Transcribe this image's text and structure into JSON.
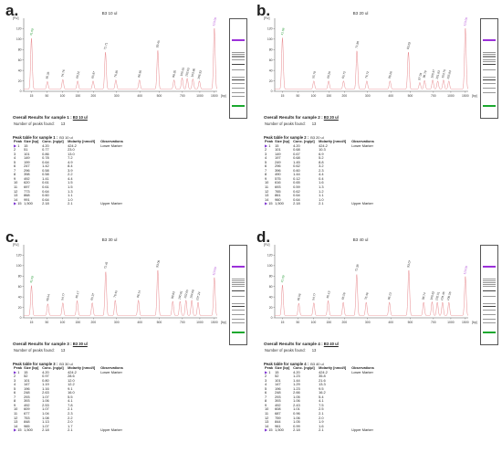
{
  "colors": {
    "trace": "#e8898e",
    "axis": "#555555",
    "lower_marker": "#2a9d3a",
    "upper_marker": "#b04bd6",
    "gel_purple": "#9b30d9",
    "gel_green": "#1aa82e"
  },
  "panels": [
    {
      "label": "a.",
      "title": "B3 10 ul",
      "summary_title": "Overall Results for sample 1 :",
      "sample_name": "B3 10 ul",
      "peaks_found_label": "Number of peaks found:",
      "peaks_found": "13",
      "peak_table_title": "Peak table for sample 1 :",
      "headers": [
        "Peak",
        "Size [bp]",
        "Conc. [ng/µl]",
        "Molarity [nmol/l]",
        "Observations"
      ],
      "rows": [
        [
          "1",
          "15",
          "4.20",
          "424.2",
          "Lower Marker"
        ],
        [
          "2",
          "51",
          "0.77",
          "23.0",
          ""
        ],
        [
          "3",
          "101",
          "0.86",
          "13.0",
          ""
        ],
        [
          "4",
          "149",
          "0.78",
          "7.2",
          ""
        ],
        [
          "5",
          "199",
          "0.64",
          "4.9",
          ""
        ],
        [
          "6",
          "247",
          "1.42",
          "8.4",
          ""
        ],
        [
          "7",
          "296",
          "0.58",
          "3.9",
          ""
        ],
        [
          "8",
          "398",
          "0.58",
          "2.2",
          ""
        ],
        [
          "9",
          "492",
          "1.41",
          "4.4",
          ""
        ],
        [
          "10",
          "620",
          "0.61",
          "1.5",
          ""
        ],
        [
          "11",
          "697",
          "0.61",
          "1.5",
          ""
        ],
        [
          "12",
          "773",
          "0.64",
          "1.3",
          ""
        ],
        [
          "13",
          "868",
          "0.60",
          "1.1",
          ""
        ],
        [
          "14",
          "991",
          "0.64",
          "1.0",
          ""
        ],
        [
          "15",
          "1,500",
          "2.18",
          "2.1",
          "Upper Marker"
        ]
      ]
    },
    {
      "label": "b.",
      "title": "B3 20 ul",
      "summary_title": "Overall Results for sample 2 :",
      "sample_name": "B3 20 ul",
      "peaks_found_label": "Number of peaks found:",
      "peaks_found": "13",
      "peak_table_title": "Peak table for sample 2 :",
      "headers": [
        "Peak",
        "Size [bp]",
        "Conc. [ng/µl]",
        "Molarity [nmol/l]",
        "Observations"
      ],
      "rows": [
        [
          "1",
          "15",
          "4.20",
          "424.2",
          "Lower Marker"
        ],
        [
          "2",
          "101",
          "0.68",
          "10.3",
          ""
        ],
        [
          "3",
          "149",
          "0.67",
          "6.9",
          ""
        ],
        [
          "4",
          "197",
          "0.68",
          "5.2",
          ""
        ],
        [
          "5",
          "249",
          "1.45",
          "8.8",
          ""
        ],
        [
          "6",
          "296",
          "0.62",
          "3.2",
          ""
        ],
        [
          "7",
          "396",
          "0.60",
          "2.3",
          ""
        ],
        [
          "8",
          "490",
          "1.44",
          "4.4",
          ""
        ],
        [
          "9",
          "575",
          "0.12",
          "0.4",
          ""
        ],
        [
          "10",
          "616",
          "0.65",
          "1.6",
          ""
        ],
        [
          "11",
          "693",
          "0.59",
          "1.3",
          ""
        ],
        [
          "12",
          "765",
          "0.62",
          "1.2",
          ""
        ],
        [
          "13",
          "861",
          "0.64",
          "1.1",
          ""
        ],
        [
          "14",
          "960",
          "0.64",
          "1.0",
          ""
        ],
        [
          "15",
          "1,500",
          "2.18",
          "2.1",
          "Upper Marker"
        ]
      ]
    },
    {
      "label": "c.",
      "title": "B3 30 ul",
      "summary_title": "Overall Results for sample 3 :",
      "sample_name": "B3 30 ul",
      "peaks_found_label": "Number of peaks found:",
      "peaks_found": "13",
      "peak_table_title": "Peak table for sample 3 :",
      "headers": [
        "Peak",
        "Size [bp]",
        "Conc. [ng/µl]",
        "Molarity [nmol/l]",
        "Observations"
      ],
      "rows": [
        [
          "1",
          "15",
          "4.20",
          "424.2",
          "Lower Marker"
        ],
        [
          "2",
          "52",
          "0.97",
          "28.6",
          ""
        ],
        [
          "3",
          "101",
          "0.80",
          "12.0",
          ""
        ],
        [
          "4",
          "147",
          "1.19",
          "12.2",
          ""
        ],
        [
          "5",
          "196",
          "1.16",
          "9.1",
          ""
        ],
        [
          "6",
          "248",
          "2.63",
          "16.0",
          ""
        ],
        [
          "7",
          "293",
          "1.07",
          "5.5",
          ""
        ],
        [
          "8",
          "393",
          "1.06",
          "4.1",
          ""
        ],
        [
          "9",
          "492",
          "2.53",
          "7.8",
          ""
        ],
        [
          "10",
          "609",
          "1.07",
          "2.1",
          ""
        ],
        [
          "11",
          "677",
          "1.04",
          "2.3",
          ""
        ],
        [
          "12",
          "753",
          "1.08",
          "2.2",
          ""
        ],
        [
          "13",
          "848",
          "1.13",
          "2.0",
          ""
        ],
        [
          "14",
          "965",
          "1.07",
          "1.7",
          ""
        ],
        [
          "15",
          "1,500",
          "2.18",
          "2.1",
          "Upper Marker"
        ]
      ]
    },
    {
      "label": "d.",
      "title": "B3 40 ul",
      "summary_title": "Overall Results for sample 4 :",
      "sample_name": "B3 40 ul",
      "peaks_found_label": "Number of peaks found:",
      "peaks_found": "13",
      "peak_table_title": "Peak table for sample 4 :",
      "headers": [
        "Peak",
        "Size [bp]",
        "Conc. [ng/µl]",
        "Molarity [nmol/l]",
        "Observations"
      ],
      "rows": [
        [
          "1",
          "15",
          "4.20",
          "424.2",
          "Lower Marker"
        ],
        [
          "2",
          "52",
          "1.23",
          "35.8",
          ""
        ],
        [
          "3",
          "101",
          "1.44",
          "21.6",
          ""
        ],
        [
          "4",
          "147",
          "1.29",
          "13.3",
          ""
        ],
        [
          "5",
          "196",
          "1.23",
          "9.5",
          ""
        ],
        [
          "6",
          "248",
          "2.66",
          "16.2",
          ""
        ],
        [
          "7",
          "293",
          "1.05",
          "5.4",
          ""
        ],
        [
          "8",
          "393",
          "1.06",
          "4.1",
          ""
        ],
        [
          "9",
          "492",
          "2.43",
          "7.5",
          ""
        ],
        [
          "10",
          "608",
          "1.01",
          "2.5",
          ""
        ],
        [
          "11",
          "687",
          "0.96",
          "2.1",
          ""
        ],
        [
          "12",
          "759",
          "1.06",
          "2.0",
          ""
        ],
        [
          "13",
          "844",
          "1.05",
          "1.9",
          ""
        ],
        [
          "14",
          "961",
          "0.99",
          "1.6",
          ""
        ],
        [
          "15",
          "1,500",
          "2.18",
          "2.1",
          "Upper Marker"
        ]
      ]
    }
  ],
  "chart_data": [
    {
      "type": "line",
      "title": "B3 10 ul",
      "ylabel": "[FU]",
      "xlabel": "[bp]",
      "ylim": [
        0,
        140
      ],
      "yticks": [
        0,
        20,
        40,
        60,
        80,
        100,
        120
      ],
      "xticks": [
        "15",
        "50",
        "100",
        "150",
        "200",
        "300",
        "400",
        "500",
        "700",
        "1500",
        "1000"
      ],
      "peaks": [
        {
          "size": 15,
          "fu": 102,
          "label": "41.09",
          "marker": "lower"
        },
        {
          "size": 51,
          "fu": 19,
          "label": "50.35"
        },
        {
          "size": 101,
          "fu": 23,
          "label": "54.76"
        },
        {
          "size": 149,
          "fu": 20,
          "label": "60.22"
        },
        {
          "size": 199,
          "fu": 20,
          "label": "65.87"
        },
        {
          "size": 247,
          "fu": 75,
          "label": "71.71"
        },
        {
          "size": 296,
          "fu": 22,
          "label": "76.85"
        },
        {
          "size": 398,
          "fu": 22,
          "label": "86.36"
        },
        {
          "size": 492,
          "fu": 79,
          "label": "93.45"
        },
        {
          "size": 620,
          "fu": 22,
          "label": "98.20"
        },
        {
          "size": 697,
          "fu": 26,
          "label": "100.61"
        },
        {
          "size": 773,
          "fu": 25,
          "label": "102.03"
        },
        {
          "size": 868,
          "fu": 24,
          "label": "103.96"
        },
        {
          "size": 991,
          "fu": 20,
          "label": "106.33"
        },
        {
          "size": 1500,
          "fu": 122,
          "label": "113.00",
          "marker": "upper"
        }
      ]
    },
    {
      "type": "line",
      "title": "B3 20 ul",
      "ylabel": "[FU]",
      "xlabel": "[bp]",
      "ylim": [
        0,
        140
      ],
      "yticks": [
        0,
        20,
        40,
        60,
        80,
        100,
        120
      ],
      "xticks": [
        "15",
        "50",
        "100",
        "150",
        "200",
        "300",
        "400",
        "500",
        "700",
        "1500",
        "1000"
      ],
      "peaks": [
        {
          "size": 15,
          "fu": 103,
          "label": "41.08",
          "marker": "lower"
        },
        {
          "size": 101,
          "fu": 20,
          "label": "55.79"
        },
        {
          "size": 149,
          "fu": 20,
          "label": "60.20"
        },
        {
          "size": 197,
          "fu": 20,
          "label": "65.72"
        },
        {
          "size": 249,
          "fu": 78,
          "label": "71.86"
        },
        {
          "size": 296,
          "fu": 20,
          "label": "76.72"
        },
        {
          "size": 396,
          "fu": 20,
          "label": "86.26"
        },
        {
          "size": 490,
          "fu": 76,
          "label": "93.29"
        },
        {
          "size": 575,
          "fu": 17,
          "label": "97.03"
        },
        {
          "size": 616,
          "fu": 21,
          "label": "98.79"
        },
        {
          "size": 693,
          "fu": 22,
          "label": "100.37"
        },
        {
          "size": 765,
          "fu": 20,
          "label": "101.83"
        },
        {
          "size": 861,
          "fu": 22,
          "label": "103.70"
        },
        {
          "size": 960,
          "fu": 20,
          "label": "105.83"
        },
        {
          "size": 1500,
          "fu": 122,
          "label": "113.00",
          "marker": "upper"
        }
      ]
    },
    {
      "type": "line",
      "title": "B3 30 ul",
      "ylabel": "[FU]",
      "xlabel": "[bp]",
      "ylim": [
        0,
        140
      ],
      "yticks": [
        0,
        20,
        40,
        60,
        80,
        100,
        120
      ],
      "xticks": [
        "15",
        "50",
        "100",
        "150",
        "200",
        "300",
        "400",
        "500",
        "700",
        "1500",
        "1000"
      ],
      "peaks": [
        {
          "size": 15,
          "fu": 62,
          "label": "41.09",
          "marker": "lower"
        },
        {
          "size": 52,
          "fu": 27,
          "label": "49.54"
        },
        {
          "size": 101,
          "fu": 29,
          "label": "54.77"
        },
        {
          "size": 147,
          "fu": 33,
          "label": "60.17"
        },
        {
          "size": 196,
          "fu": 29,
          "label": "65.37"
        },
        {
          "size": 248,
          "fu": 89,
          "label": "71.45"
        },
        {
          "size": 293,
          "fu": 34,
          "label": "76.45"
        },
        {
          "size": 393,
          "fu": 34,
          "label": "86.14"
        },
        {
          "size": 492,
          "fu": 92,
          "label": "93.06"
        },
        {
          "size": 609,
          "fu": 32,
          "label": "98.83"
        },
        {
          "size": 677,
          "fu": 32,
          "label": "100.81"
        },
        {
          "size": 753,
          "fu": 34,
          "label": "102.65"
        },
        {
          "size": 848,
          "fu": 34,
          "label": "104.68"
        },
        {
          "size": 965,
          "fu": 30,
          "label": "107.24"
        },
        {
          "size": 1500,
          "fu": 78,
          "label": "113.00",
          "marker": "upper"
        }
      ]
    },
    {
      "type": "line",
      "title": "B3 40 ul",
      "ylabel": "[FU]",
      "xlabel": "[bp]",
      "ylim": [
        0,
        140
      ],
      "yticks": [
        0,
        20,
        40,
        60,
        80,
        100,
        120
      ],
      "xticks": [
        "15",
        "50",
        "100",
        "150",
        "200",
        "300",
        "400",
        "500",
        "700",
        "1500",
        "1000"
      ],
      "peaks": [
        {
          "size": 15,
          "fu": 63,
          "label": "41.09",
          "marker": "lower"
        },
        {
          "size": 52,
          "fu": 28,
          "label": "48.56"
        },
        {
          "size": 101,
          "fu": 29,
          "label": "54.77"
        },
        {
          "size": 147,
          "fu": 33,
          "label": "60.13"
        },
        {
          "size": 196,
          "fu": 30,
          "label": "65.56"
        },
        {
          "size": 248,
          "fu": 84,
          "label": "71.38"
        },
        {
          "size": 293,
          "fu": 30,
          "label": "76.46"
        },
        {
          "size": 393,
          "fu": 30,
          "label": "86.13"
        },
        {
          "size": 492,
          "fu": 92,
          "label": "93.07"
        },
        {
          "size": 608,
          "fu": 30,
          "label": "98.74"
        },
        {
          "size": 687,
          "fu": 31,
          "label": "100.62"
        },
        {
          "size": 759,
          "fu": 30,
          "label": "102.51"
        },
        {
          "size": 844,
          "fu": 30,
          "label": "104.46"
        },
        {
          "size": 961,
          "fu": 30,
          "label": "106.56"
        },
        {
          "size": 1500,
          "fu": 80,
          "label": "113.00",
          "marker": "upper"
        }
      ]
    }
  ]
}
